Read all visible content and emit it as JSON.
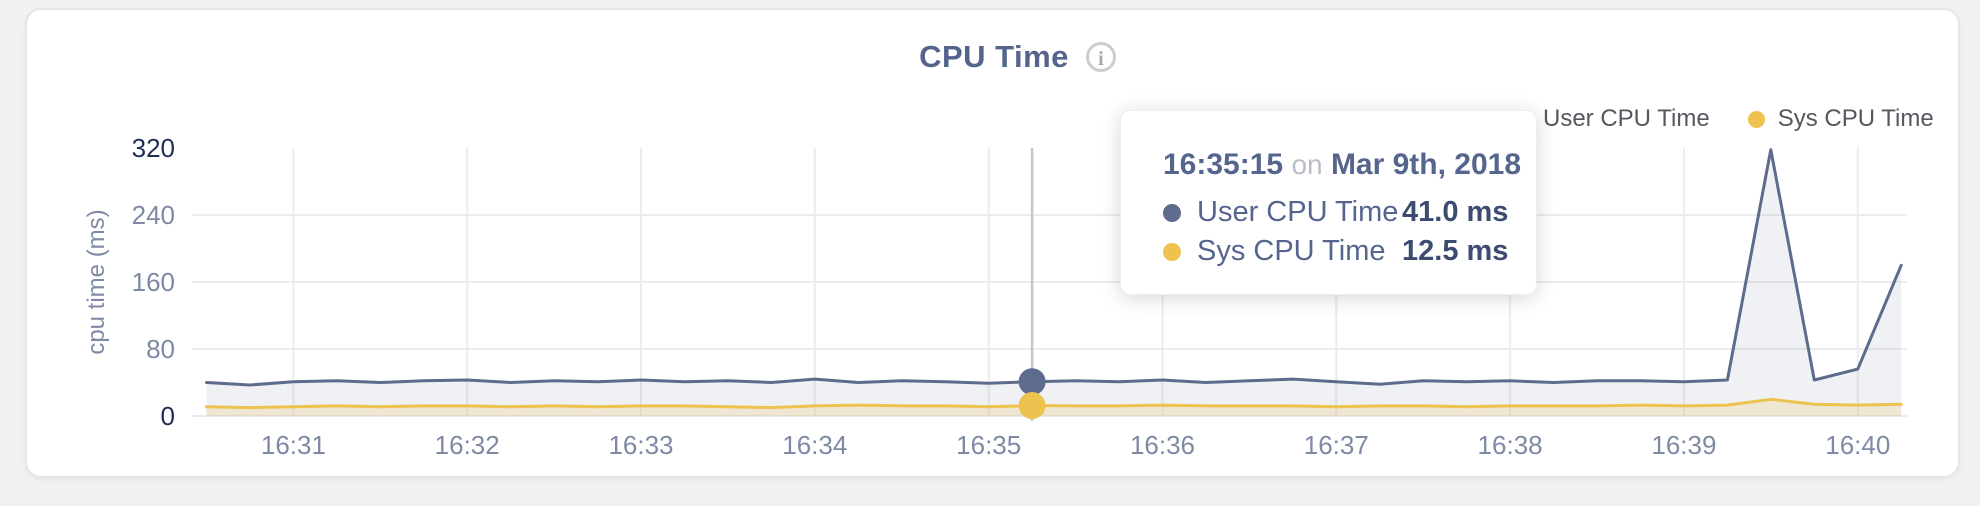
{
  "card": {
    "title": "CPU Time",
    "info_icon": "i"
  },
  "legend": {
    "items": [
      {
        "label": "User CPU Time",
        "color": "#5d6b8d"
      },
      {
        "label": "Sys CPU Time",
        "color": "#eec24f"
      }
    ]
  },
  "tooltip": {
    "time": "16:35:15",
    "conjunction": "on",
    "date": "Mar 9th, 2018",
    "rows": [
      {
        "label": "User CPU Time",
        "value": "41.0 ms",
        "color": "#5d6b8d"
      },
      {
        "label": "Sys CPU Time",
        "value": "12.5 ms",
        "color": "#eec24f"
      }
    ]
  },
  "chart_data": {
    "type": "line",
    "title": "CPU Time",
    "xlabel": "",
    "ylabel": "cpu time (ms)",
    "ylim": [
      0,
      320
    ],
    "yticks": [
      0,
      80,
      160,
      240,
      320
    ],
    "xticks": [
      "16:31",
      "16:32",
      "16:33",
      "16:34",
      "16:35",
      "16:36",
      "16:37",
      "16:38",
      "16:39",
      "16:40"
    ],
    "x_times": [
      "16:30:30",
      "16:30:45",
      "16:31:00",
      "16:31:15",
      "16:31:30",
      "16:31:45",
      "16:32:00",
      "16:32:15",
      "16:32:30",
      "16:32:45",
      "16:33:00",
      "16:33:15",
      "16:33:30",
      "16:33:45",
      "16:34:00",
      "16:34:15",
      "16:34:30",
      "16:34:45",
      "16:35:00",
      "16:35:15",
      "16:35:30",
      "16:35:45",
      "16:36:00",
      "16:36:15",
      "16:36:30",
      "16:36:45",
      "16:37:00",
      "16:37:15",
      "16:37:30",
      "16:37:45",
      "16:38:00",
      "16:38:15",
      "16:38:30",
      "16:38:45",
      "16:39:00",
      "16:39:15",
      "16:39:30",
      "16:39:45",
      "16:40:00",
      "16:40:15"
    ],
    "series": [
      {
        "name": "User CPU Time",
        "color": "#5d6b8d",
        "fill": "rgba(99,113,145,0.10)",
        "values": [
          40,
          37,
          41,
          42,
          40,
          42,
          43,
          40,
          42,
          41,
          43,
          41,
          42,
          40,
          44,
          40,
          42,
          41,
          39,
          41,
          42,
          41,
          43,
          40,
          42,
          44,
          41,
          38,
          42,
          41,
          42,
          40,
          42,
          42,
          41,
          43,
          318,
          43,
          56,
          180
        ]
      },
      {
        "name": "Sys CPU Time",
        "color": "#eec24f",
        "fill": "rgba(238,195,80,0.20)",
        "values": [
          11,
          10,
          11,
          12,
          11,
          12,
          12,
          11,
          12,
          11,
          12,
          12,
          11,
          10,
          12,
          13,
          12,
          12,
          11,
          12.5,
          12,
          12,
          13,
          12,
          12,
          12,
          11,
          12,
          12,
          11,
          12,
          12,
          12,
          13,
          12,
          13,
          20,
          14,
          13,
          14
        ]
      }
    ],
    "hover": {
      "time": "16:35:15",
      "index": 19,
      "values": [
        41.0,
        12.5
      ]
    },
    "layout": {
      "grid": true,
      "legend_position": "top-right",
      "x_domain": [
        "16:30:25",
        "16:40:17"
      ],
      "colors": {
        "grid": "#ececec",
        "crosshair": "#c6c6c6",
        "tick": "#7e8aa4",
        "tick_edge": "#1f2e52",
        "background": "#ffffff"
      }
    }
  }
}
